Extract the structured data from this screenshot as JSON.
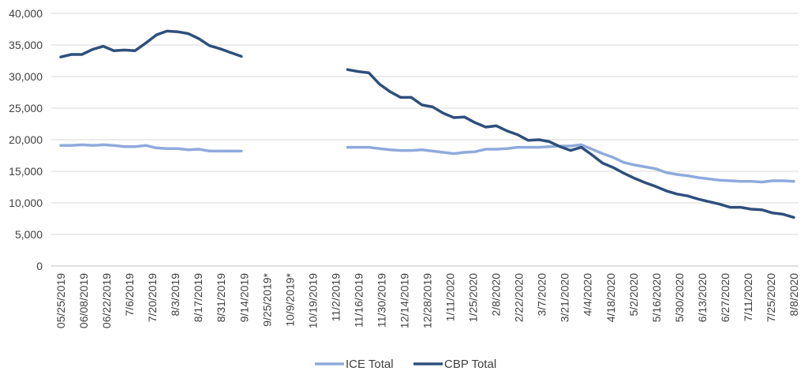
{
  "chart_data": {
    "type": "line",
    "title": "",
    "xlabel": "",
    "ylabel": "",
    "ylim": [
      0,
      40000
    ],
    "y_ticks": [
      "0",
      "5,000",
      "10,000",
      "15,000",
      "20,000",
      "25,000",
      "30,000",
      "35,000",
      "40,000"
    ],
    "y_tick_values": [
      0,
      5000,
      10000,
      15000,
      20000,
      25000,
      30000,
      35000,
      40000
    ],
    "x_tick_labels": [
      "05/25/2019",
      "06/08/2019",
      "06/22/2019",
      "7/6/2019",
      "7/20/2019",
      "8/3/2019",
      "8/17/2019",
      "8/31/2019",
      "9/14/2019",
      "9/25/2019*",
      "10/9/2019*",
      "10/19/2019",
      "11/2/2019",
      "11/16/2019",
      "11/30/2019",
      "12/14/2019",
      "12/28/2019",
      "1/11/2020",
      "1/25/2020",
      "2/8/2020",
      "2/22/2020",
      "3/7/2020",
      "3/21/2020",
      "4/4/2020",
      "4/18/2020",
      "5/2/2020",
      "5/16/2020",
      "5/30/2020",
      "6/13/2020",
      "6/27/2020",
      "7/11/2020",
      "7/25/2020",
      "8/8/2020"
    ],
    "grid": "horizontal",
    "legend_position": "bottom",
    "series": [
      {
        "name": "ICE Total",
        "color": "#8faadc",
        "values": [
          19100,
          19100,
          19200,
          19100,
          19200,
          19100,
          18900,
          18900,
          19100,
          18700,
          18600,
          18600,
          18400,
          18500,
          18200,
          18200,
          18200,
          18200,
          null,
          null,
          null,
          null,
          null,
          null,
          null,
          null,
          null,
          18800,
          18800,
          18800,
          18600,
          18400,
          18300,
          18300,
          18400,
          18200,
          18000,
          17800,
          18000,
          18100,
          18500,
          18500,
          18600,
          18800,
          18800,
          18800,
          18900,
          19000,
          19000,
          19200,
          18500,
          17800,
          17200,
          16400,
          16000,
          15700,
          15400,
          14800,
          14500,
          14300,
          14000,
          13800,
          13600,
          13500,
          13400,
          13400,
          13300,
          13500,
          13500,
          13400
        ]
      },
      {
        "name": "CBP Total",
        "color": "#2f4f7c",
        "values": [
          33100,
          33500,
          33500,
          34300,
          34800,
          34100,
          34200,
          34100,
          35300,
          36600,
          37200,
          37100,
          36800,
          36000,
          34900,
          34400,
          33800,
          33200,
          null,
          null,
          null,
          null,
          null,
          null,
          null,
          null,
          null,
          31100,
          30800,
          30600,
          28800,
          27600,
          26700,
          26700,
          25500,
          25200,
          24200,
          23500,
          23600,
          22700,
          22000,
          22200,
          21400,
          20800,
          19900,
          20000,
          19700,
          18900,
          18300,
          18800,
          17600,
          16300,
          15600,
          14700,
          13900,
          13200,
          12600,
          11900,
          11400,
          11100,
          10600,
          10200,
          9800,
          9300,
          9300,
          9000,
          8900,
          8400,
          8200,
          7700
        ]
      }
    ]
  }
}
